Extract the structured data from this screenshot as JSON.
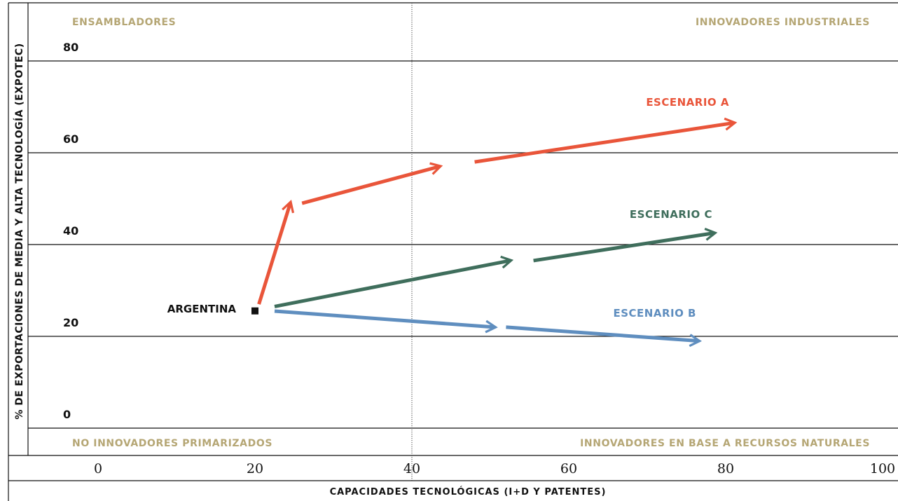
{
  "chart_data": {
    "type": "line",
    "xlabel": "CAPACIDADES TECNOLÓGICAS (I+D Y PATENTES)",
    "ylabel": "% DE EXPORTACIONES DE MEDIA Y ALTA TECNOLOGÍA (EXPOTEC)",
    "x_ticks": [
      "0",
      "20",
      "40",
      "60",
      "80",
      "100"
    ],
    "y_ticks": [
      "0",
      "20",
      "40",
      "60",
      "80"
    ],
    "xlim": [
      0,
      100
    ],
    "ylim": [
      0,
      80
    ],
    "grid": "horizontal",
    "divider_x": 40,
    "quadrants": {
      "top_left": "ENSAMBLADORES",
      "top_right": "INNOVADORES INDUSTRIALES",
      "bottom_left": "NO INNOVADORES PRIMARIZADOS",
      "bottom_right": "INNOVADORES EN BASE A RECURSOS NATURALES"
    },
    "origin": {
      "label": "ARGENTINA",
      "x": 20,
      "y": 26
    },
    "series": [
      {
        "name": "ESCENARIO A",
        "color": "#e9553a",
        "segments": [
          {
            "from": [
              20.5,
              27
            ],
            "to": [
              24.5,
              49
            ]
          },
          {
            "from": [
              26,
              49
            ],
            "to": [
              43.5,
              57
            ]
          },
          {
            "from": [
              48,
              58
            ],
            "to": [
              81,
              66.5
            ]
          }
        ]
      },
      {
        "name": "ESCENARIO C",
        "color": "#3f6e5c",
        "segments": [
          {
            "from": [
              22.5,
              26.5
            ],
            "to": [
              52.5,
              36.5
            ]
          },
          {
            "from": [
              55.5,
              36.5
            ],
            "to": [
              78.5,
              42.5
            ]
          }
        ]
      },
      {
        "name": "ESCENARIO B",
        "color": "#5f8ebf",
        "segments": [
          {
            "from": [
              22.5,
              25.5
            ],
            "to": [
              50.5,
              22
            ]
          },
          {
            "from": [
              52,
              22
            ],
            "to": [
              76.5,
              19
            ]
          }
        ]
      }
    ]
  }
}
